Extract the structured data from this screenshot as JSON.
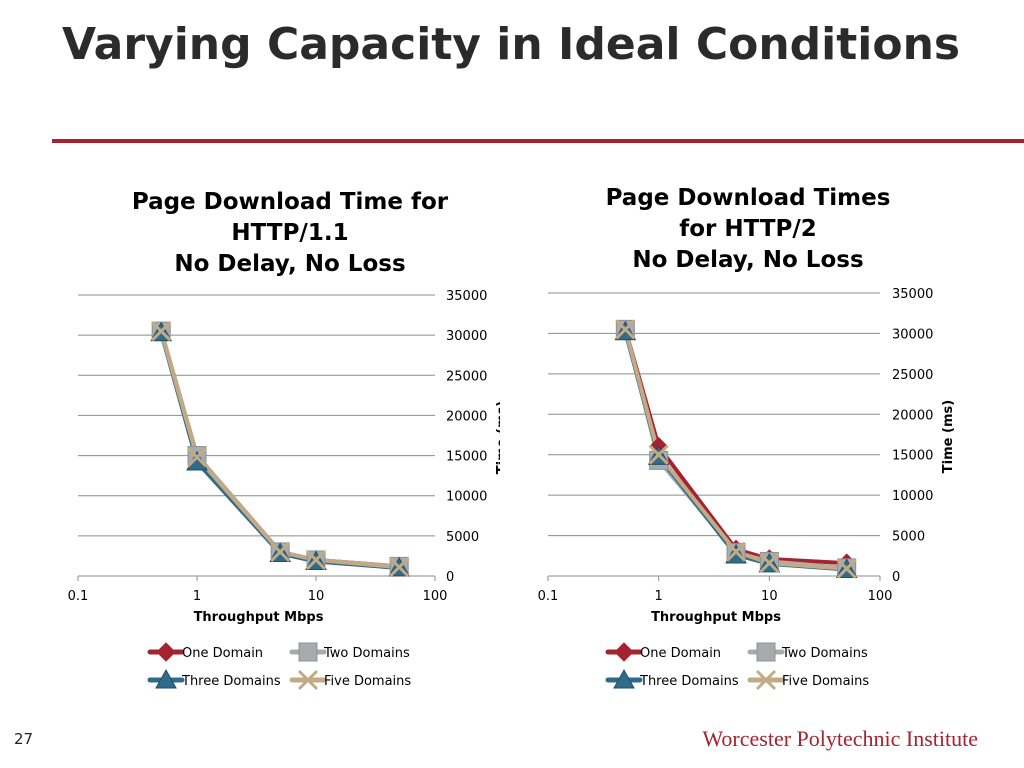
{
  "slide": {
    "title": "Varying Capacity in Ideal Conditions",
    "number": "27",
    "institution": "Worcester Polytechnic Institute",
    "accent_color": "#a6222f"
  },
  "chart_data": [
    {
      "type": "line",
      "title_lines": [
        "Page Download Time for",
        "HTTP/1.1",
        "No Delay, No Loss"
      ],
      "xlabel": "Throughput Mbps",
      "ylabel": "Time (ms)",
      "x_scale": "log",
      "xlim": [
        0.1,
        100
      ],
      "ylim": [
        0,
        35000
      ],
      "x_ticks": [
        "0.1",
        "1",
        "10",
        "100"
      ],
      "y_ticks": [
        "0",
        "5000",
        "10000",
        "15000",
        "20000",
        "25000",
        "30000",
        "35000"
      ],
      "y_axis_side": "right",
      "grid": true,
      "legend_position": "bottom",
      "x": [
        0.5,
        1,
        5,
        10,
        50
      ],
      "series": [
        {
          "name": "One Domain",
          "values": [
            30500,
            15000,
            3000,
            2000,
            1200
          ],
          "color": "#a6222f",
          "marker": "diamond"
        },
        {
          "name": "Two Domains",
          "values": [
            30500,
            15000,
            3000,
            2000,
            1200
          ],
          "color": "#a8abae",
          "marker": "square"
        },
        {
          "name": "Three Domains",
          "values": [
            30300,
            14200,
            2800,
            1800,
            1000
          ],
          "color": "#2f6b8a",
          "marker": "triangle"
        },
        {
          "name": "Five Domains",
          "values": [
            30500,
            14800,
            3000,
            2000,
            1100
          ],
          "color": "#c2ab84",
          "marker": "x"
        }
      ]
    },
    {
      "type": "line",
      "title_lines": [
        "Page Download Times",
        "for HTTP/2",
        "No Delay, No Loss"
      ],
      "xlabel": "Throughput Mbps",
      "ylabel": "Time (ms)",
      "x_scale": "log",
      "xlim": [
        0.1,
        100
      ],
      "ylim": [
        0,
        35000
      ],
      "x_ticks": [
        "0.1",
        "1",
        "10",
        "100"
      ],
      "y_ticks": [
        "0",
        "5000",
        "10000",
        "15000",
        "20000",
        "25000",
        "30000",
        "35000"
      ],
      "y_axis_side": "right",
      "grid": true,
      "legend_position": "bottom",
      "x": [
        0.5,
        1,
        5,
        10,
        50
      ],
      "series": [
        {
          "name": "One Domain",
          "values": [
            30500,
            16000,
            3300,
            2100,
            1600
          ],
          "color": "#a6222f",
          "marker": "diamond"
        },
        {
          "name": "Two Domains",
          "values": [
            30500,
            14300,
            2900,
            1800,
            1000
          ],
          "color": "#a8abae",
          "marker": "square"
        },
        {
          "name": "Three Domains",
          "values": [
            30200,
            14800,
            2600,
            1500,
            800
          ],
          "color": "#2f6b8a",
          "marker": "triangle"
        },
        {
          "name": "Five Domains",
          "values": [
            30500,
            15000,
            3000,
            1600,
            900
          ],
          "color": "#c2ab84",
          "marker": "x"
        }
      ]
    }
  ]
}
